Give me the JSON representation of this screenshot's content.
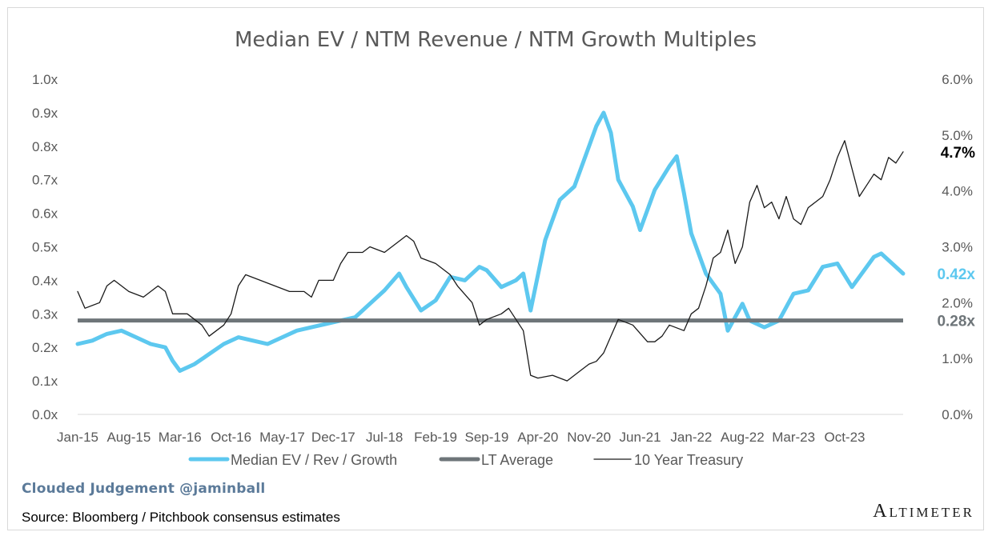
{
  "chart_data": {
    "type": "line",
    "title": "Median EV / NTM Revenue / NTM Growth Multiples",
    "x_tick_labels": [
      "Jan-15",
      "Aug-15",
      "Mar-16",
      "Oct-16",
      "May-17",
      "Dec-17",
      "Jul-18",
      "Feb-19",
      "Sep-19",
      "Apr-20",
      "Nov-20",
      "Jun-21",
      "Jan-22",
      "Aug-22",
      "Mar-23",
      "Oct-23"
    ],
    "x_range": [
      "Jan-15",
      "Jun-24"
    ],
    "left_axis": {
      "ticks": [
        "0.0x",
        "0.1x",
        "0.2x",
        "0.3x",
        "0.4x",
        "0.5x",
        "0.6x",
        "0.7x",
        "0.8x",
        "0.9x",
        "1.0x"
      ],
      "range": [
        0,
        1.0
      ]
    },
    "right_axis": {
      "ticks": [
        "0.0%",
        "1.0%",
        "2.0%",
        "3.0%",
        "4.0%",
        "5.0%",
        "6.0%"
      ],
      "range": [
        0,
        6.0
      ]
    },
    "grid": false,
    "legend_position": "bottom",
    "series": [
      {
        "name": "Median EV / Rev / Growth",
        "axis": "left",
        "color": "#5dc8ef",
        "end_label": "0.42x",
        "points": [
          [
            "Jan-15",
            0.21
          ],
          [
            "Mar-15",
            0.22
          ],
          [
            "May-15",
            0.24
          ],
          [
            "Jul-15",
            0.25
          ],
          [
            "Sep-15",
            0.23
          ],
          [
            "Nov-15",
            0.21
          ],
          [
            "Jan-16",
            0.2
          ],
          [
            "Feb-16",
            0.16
          ],
          [
            "Mar-16",
            0.13
          ],
          [
            "May-16",
            0.15
          ],
          [
            "Jul-16",
            0.18
          ],
          [
            "Sep-16",
            0.21
          ],
          [
            "Nov-16",
            0.23
          ],
          [
            "Jan-17",
            0.22
          ],
          [
            "Mar-17",
            0.21
          ],
          [
            "May-17",
            0.23
          ],
          [
            "Jul-17",
            0.25
          ],
          [
            "Sep-17",
            0.26
          ],
          [
            "Nov-17",
            0.27
          ],
          [
            "Jan-18",
            0.28
          ],
          [
            "Mar-18",
            0.29
          ],
          [
            "May-18",
            0.33
          ],
          [
            "Jul-18",
            0.37
          ],
          [
            "Sep-18",
            0.42
          ],
          [
            "Oct-18",
            0.38
          ],
          [
            "Dec-18",
            0.31
          ],
          [
            "Feb-19",
            0.34
          ],
          [
            "Apr-19",
            0.41
          ],
          [
            "Jun-19",
            0.4
          ],
          [
            "Aug-19",
            0.44
          ],
          [
            "Sep-19",
            0.43
          ],
          [
            "Nov-19",
            0.38
          ],
          [
            "Jan-20",
            0.4
          ],
          [
            "Feb-20",
            0.42
          ],
          [
            "Mar-20",
            0.31
          ],
          [
            "May-20",
            0.52
          ],
          [
            "Jul-20",
            0.64
          ],
          [
            "Sep-20",
            0.68
          ],
          [
            "Nov-20",
            0.8
          ],
          [
            "Dec-20",
            0.86
          ],
          [
            "Jan-21",
            0.9
          ],
          [
            "Feb-21",
            0.84
          ],
          [
            "Mar-21",
            0.7
          ],
          [
            "May-21",
            0.62
          ],
          [
            "Jun-21",
            0.55
          ],
          [
            "Aug-21",
            0.67
          ],
          [
            "Oct-21",
            0.74
          ],
          [
            "Nov-21",
            0.77
          ],
          [
            "Dec-21",
            0.66
          ],
          [
            "Jan-22",
            0.54
          ],
          [
            "Mar-22",
            0.42
          ],
          [
            "May-22",
            0.36
          ],
          [
            "Jun-22",
            0.25
          ],
          [
            "Aug-22",
            0.33
          ],
          [
            "Sep-22",
            0.28
          ],
          [
            "Nov-22",
            0.26
          ],
          [
            "Jan-23",
            0.28
          ],
          [
            "Mar-23",
            0.36
          ],
          [
            "May-23",
            0.37
          ],
          [
            "Jul-23",
            0.44
          ],
          [
            "Sep-23",
            0.45
          ],
          [
            "Nov-23",
            0.38
          ],
          [
            "Dec-23",
            0.41
          ],
          [
            "Feb-24",
            0.47
          ],
          [
            "Mar-24",
            0.48
          ],
          [
            "May-24",
            0.44
          ],
          [
            "Jun-24",
            0.42
          ]
        ]
      },
      {
        "name": "LT Average",
        "axis": "left",
        "color": "#6e7579",
        "end_label": "0.28x",
        "value": 0.28
      },
      {
        "name": "10 Year Treasury",
        "axis": "right",
        "color": "#1a1a1a",
        "end_label": "4.7%",
        "points": [
          [
            "Jan-15",
            2.2
          ],
          [
            "Feb-15",
            1.9
          ],
          [
            "Apr-15",
            2.0
          ],
          [
            "May-15",
            2.3
          ],
          [
            "Jun-15",
            2.4
          ],
          [
            "Aug-15",
            2.2
          ],
          [
            "Oct-15",
            2.1
          ],
          [
            "Dec-15",
            2.3
          ],
          [
            "Jan-16",
            2.2
          ],
          [
            "Feb-16",
            1.8
          ],
          [
            "Apr-16",
            1.8
          ],
          [
            "Jun-16",
            1.6
          ],
          [
            "Jul-16",
            1.4
          ],
          [
            "Sep-16",
            1.6
          ],
          [
            "Oct-16",
            1.8
          ],
          [
            "Nov-16",
            2.3
          ],
          [
            "Dec-16",
            2.5
          ],
          [
            "Feb-17",
            2.4
          ],
          [
            "Apr-17",
            2.3
          ],
          [
            "Jun-17",
            2.2
          ],
          [
            "Aug-17",
            2.2
          ],
          [
            "Sep-17",
            2.1
          ],
          [
            "Oct-17",
            2.4
          ],
          [
            "Dec-17",
            2.4
          ],
          [
            "Jan-18",
            2.7
          ],
          [
            "Feb-18",
            2.9
          ],
          [
            "Apr-18",
            2.9
          ],
          [
            "May-18",
            3.0
          ],
          [
            "Jul-18",
            2.9
          ],
          [
            "Sep-18",
            3.1
          ],
          [
            "Oct-18",
            3.2
          ],
          [
            "Nov-18",
            3.1
          ],
          [
            "Dec-18",
            2.8
          ],
          [
            "Feb-19",
            2.7
          ],
          [
            "Apr-19",
            2.5
          ],
          [
            "May-19",
            2.3
          ],
          [
            "Jul-19",
            2.0
          ],
          [
            "Aug-19",
            1.6
          ],
          [
            "Sep-19",
            1.7
          ],
          [
            "Nov-19",
            1.8
          ],
          [
            "Dec-19",
            1.9
          ],
          [
            "Feb-20",
            1.5
          ],
          [
            "Mar-20",
            0.7
          ],
          [
            "Apr-20",
            0.65
          ],
          [
            "Jun-20",
            0.7
          ],
          [
            "Aug-20",
            0.6
          ],
          [
            "Oct-20",
            0.8
          ],
          [
            "Nov-20",
            0.9
          ],
          [
            "Dec-20",
            0.95
          ],
          [
            "Jan-21",
            1.1
          ],
          [
            "Feb-21",
            1.4
          ],
          [
            "Mar-21",
            1.7
          ],
          [
            "May-21",
            1.6
          ],
          [
            "Jul-21",
            1.3
          ],
          [
            "Aug-21",
            1.3
          ],
          [
            "Sep-21",
            1.4
          ],
          [
            "Oct-21",
            1.6
          ],
          [
            "Dec-21",
            1.5
          ],
          [
            "Jan-22",
            1.8
          ],
          [
            "Feb-22",
            1.9
          ],
          [
            "Mar-22",
            2.3
          ],
          [
            "Apr-22",
            2.8
          ],
          [
            "May-22",
            2.9
          ],
          [
            "Jun-22",
            3.3
          ],
          [
            "Jul-22",
            2.7
          ],
          [
            "Aug-22",
            3.0
          ],
          [
            "Sep-22",
            3.8
          ],
          [
            "Oct-22",
            4.1
          ],
          [
            "Nov-22",
            3.7
          ],
          [
            "Dec-22",
            3.8
          ],
          [
            "Jan-23",
            3.5
          ],
          [
            "Feb-23",
            3.9
          ],
          [
            "Mar-23",
            3.5
          ],
          [
            "Apr-23",
            3.4
          ],
          [
            "May-23",
            3.7
          ],
          [
            "Jun-23",
            3.8
          ],
          [
            "Jul-23",
            3.9
          ],
          [
            "Aug-23",
            4.2
          ],
          [
            "Sep-23",
            4.6
          ],
          [
            "Oct-23",
            4.9
          ],
          [
            "Nov-23",
            4.4
          ],
          [
            "Dec-23",
            3.9
          ],
          [
            "Jan-24",
            4.1
          ],
          [
            "Feb-24",
            4.3
          ],
          [
            "Mar-24",
            4.2
          ],
          [
            "Apr-24",
            4.6
          ],
          [
            "May-24",
            4.5
          ],
          [
            "Jun-24",
            4.7
          ]
        ]
      }
    ]
  },
  "footer": {
    "credit": "Clouded Judgement @jaminball",
    "source": "Source: Bloomberg / Pitchbook consensus estimates",
    "logo": "Altimeter"
  }
}
